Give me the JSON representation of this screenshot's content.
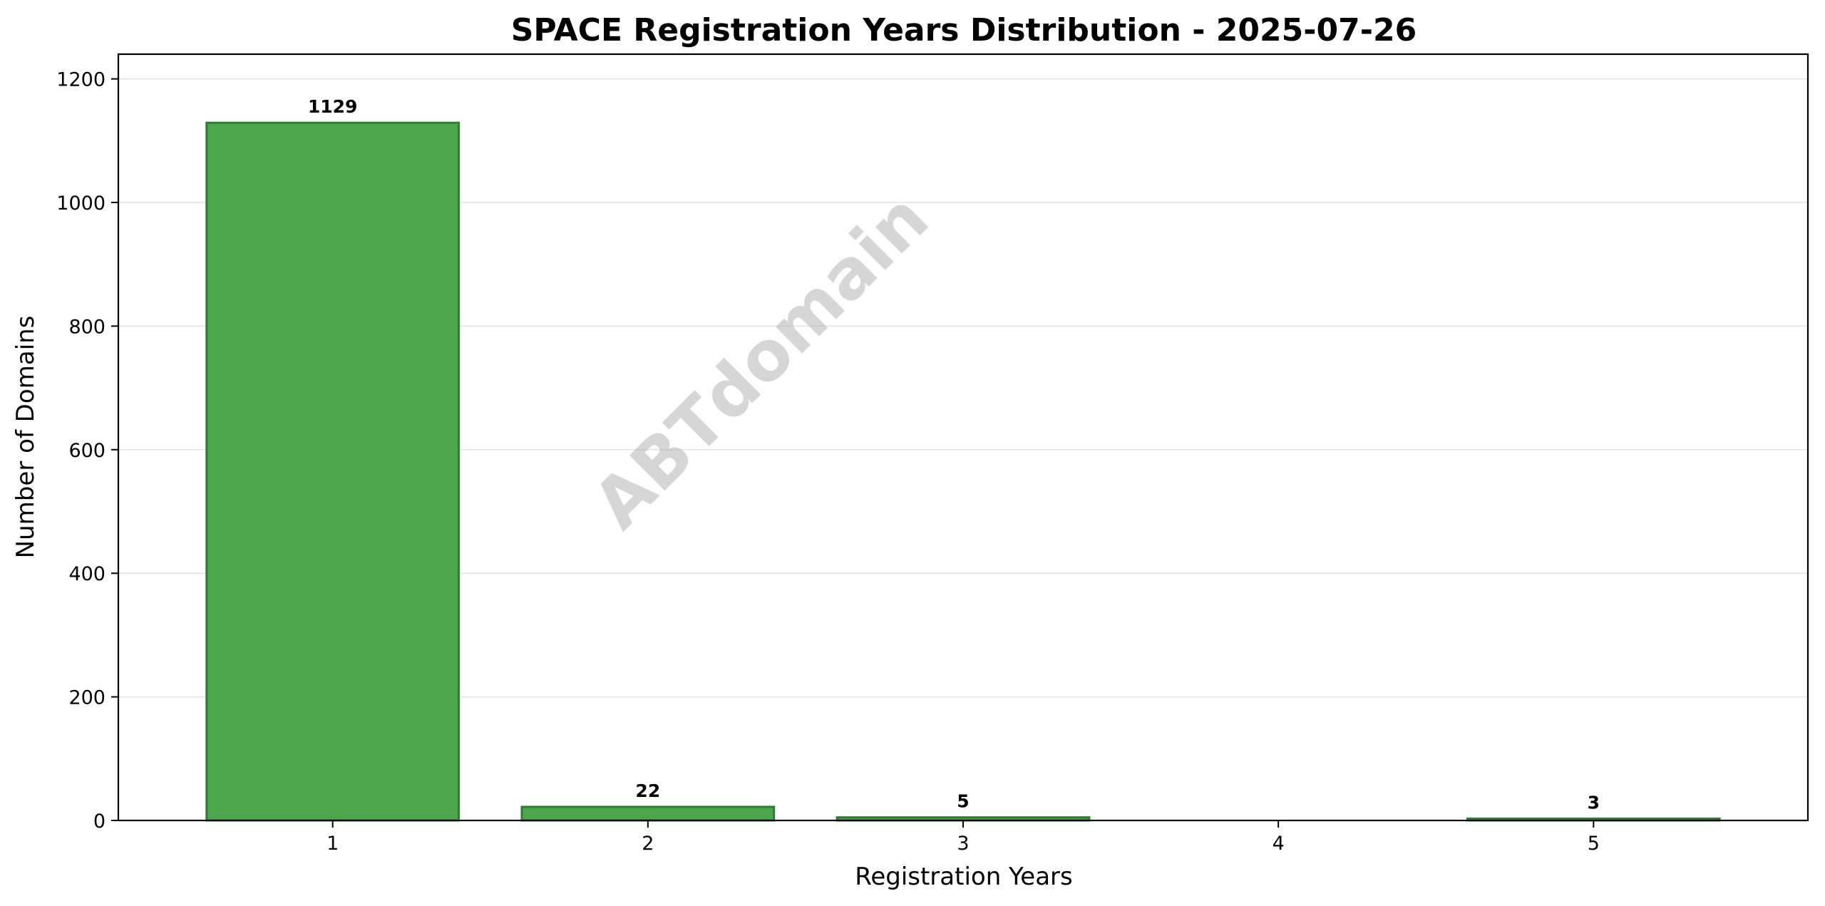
{
  "chart_data": {
    "type": "bar",
    "title": "SPACE Registration Years Distribution - 2025-07-26",
    "xlabel": "Registration Years",
    "ylabel": "Number of Domains",
    "categories": [
      "1",
      "2",
      "3",
      "4",
      "5"
    ],
    "values": [
      1129,
      22,
      5,
      0,
      3
    ],
    "data_labels": [
      "1129",
      "22",
      "5",
      "",
      "3"
    ],
    "ylim": [
      0,
      1240
    ],
    "yticks": [
      0,
      200,
      400,
      600,
      800,
      1000,
      1200
    ],
    "ytick_labels": [
      "0",
      "200",
      "400",
      "600",
      "800",
      "1000",
      "1200"
    ],
    "grid": "horizontal",
    "bar_color": "#4ca64c",
    "bar_edge_color": "#2e7d32",
    "watermark": "ABTdomain"
  }
}
